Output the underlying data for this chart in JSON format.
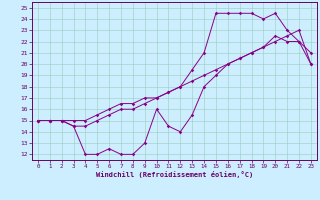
{
  "xlabel": "Windchill (Refroidissement éolien,°C)",
  "bg_color": "#cceeff",
  "line_color": "#880088",
  "xlim": [
    -0.5,
    23.5
  ],
  "ylim": [
    11.5,
    25.5
  ],
  "xticks": [
    0,
    1,
    2,
    3,
    4,
    5,
    6,
    7,
    8,
    9,
    10,
    11,
    12,
    13,
    14,
    15,
    16,
    17,
    18,
    19,
    20,
    21,
    22,
    23
  ],
  "yticks": [
    12,
    13,
    14,
    15,
    16,
    17,
    18,
    19,
    20,
    21,
    22,
    23,
    24,
    25
  ],
  "series": [
    {
      "x": [
        0,
        1,
        2,
        3,
        4,
        5,
        6,
        7,
        8,
        9,
        10,
        11,
        12,
        13,
        14,
        15,
        16,
        17,
        18,
        19,
        20,
        21,
        22,
        23
      ],
      "y": [
        15,
        15,
        15,
        14.5,
        12,
        12,
        12.5,
        12,
        12,
        13,
        16,
        14.5,
        14,
        15.5,
        18,
        19,
        20,
        20.5,
        21,
        21.5,
        22.5,
        22,
        22,
        20
      ]
    },
    {
      "x": [
        0,
        1,
        2,
        3,
        4,
        5,
        6,
        7,
        8,
        9,
        10,
        11,
        12,
        13,
        14,
        15,
        16,
        17,
        18,
        19,
        20,
        21,
        22,
        23
      ],
      "y": [
        15,
        15,
        15,
        15,
        15,
        15.5,
        16,
        16.5,
        16.5,
        17,
        17,
        17.5,
        18,
        18.5,
        19,
        19.5,
        20,
        20.5,
        21,
        21.5,
        22,
        22.5,
        23,
        20
      ]
    },
    {
      "x": [
        0,
        1,
        2,
        3,
        4,
        5,
        6,
        7,
        8,
        9,
        10,
        11,
        12,
        13,
        14,
        15,
        16,
        17,
        18,
        19,
        20,
        21,
        22,
        23
      ],
      "y": [
        15,
        15,
        15,
        14.5,
        14.5,
        15,
        15.5,
        16,
        16,
        16.5,
        17,
        17.5,
        18,
        19.5,
        21,
        24.5,
        24.5,
        24.5,
        24.5,
        24,
        24.5,
        23,
        22,
        21
      ]
    }
  ]
}
